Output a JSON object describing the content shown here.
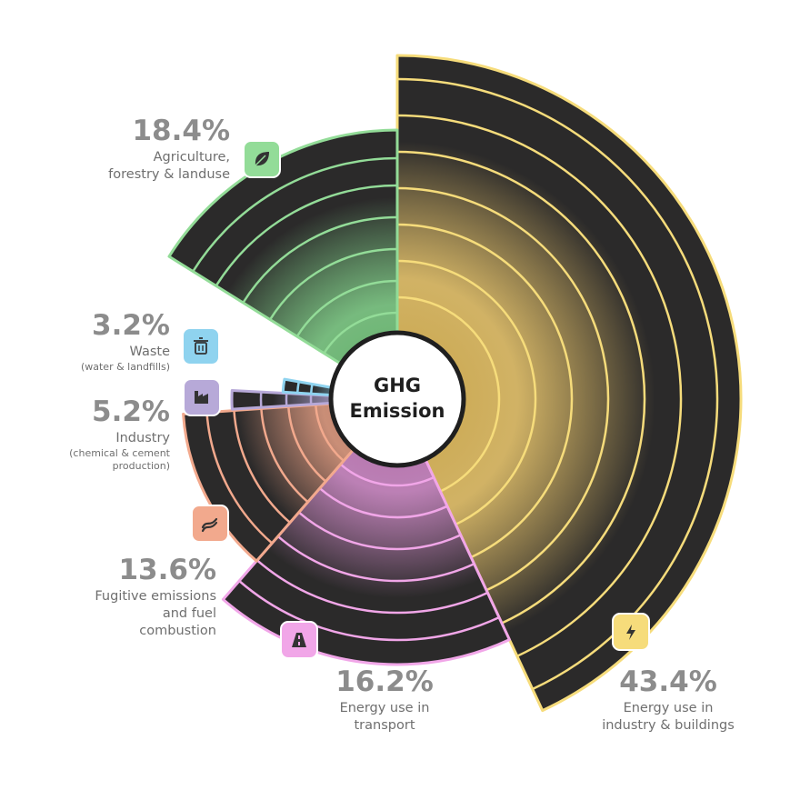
{
  "chart_data": {
    "type": "polar-area",
    "center_label": [
      "GHG",
      "Emission"
    ],
    "unit": "%",
    "segments": [
      {
        "key": "industry-buildings",
        "value": 43.4,
        "value_label": "43.4%",
        "label_lines": [
          "Energy use in",
          "industry & buildings"
        ],
        "label_small_lines": [],
        "icon": "lightning-icon",
        "color": "#f6dc7b",
        "glow": "#c9a54a"
      },
      {
        "key": "transport",
        "value": 16.2,
        "value_label": "16.2%",
        "label_lines": [
          "Energy use in",
          "transport"
        ],
        "label_small_lines": [],
        "icon": "road-icon",
        "color": "#f1a6e8",
        "glow": "#b06aa8"
      },
      {
        "key": "fugitive",
        "value": 13.6,
        "value_label": "13.6%",
        "label_lines": [
          "Fugitive emissions",
          "and fuel",
          "combustion"
        ],
        "label_small_lines": [],
        "icon": "flame-icon",
        "color": "#f2a98d",
        "glow": "#c07a5f"
      },
      {
        "key": "industry",
        "value": 5.2,
        "value_label": "5.2%",
        "label_lines": [
          "Industry"
        ],
        "label_small_lines": [
          "(chemical & cement",
          "production)"
        ],
        "icon": "factory-icon",
        "color": "#b7a9d8",
        "glow": "#8a7fae"
      },
      {
        "key": "waste",
        "value": 3.2,
        "value_label": "3.2%",
        "label_lines": [
          "Waste"
        ],
        "label_small_lines": [
          "(water & landfills)"
        ],
        "icon": "trash-icon",
        "color": "#8fd3ef",
        "glow": "#5fa7c4"
      },
      {
        "key": "agriculture",
        "value": 18.4,
        "value_label": "18.4%",
        "label_lines": [
          "Agriculture,",
          "forestry & landuse"
        ],
        "label_small_lines": [],
        "icon": "leaf-icon",
        "color": "#93dc98",
        "glow": "#5fae67"
      }
    ]
  }
}
